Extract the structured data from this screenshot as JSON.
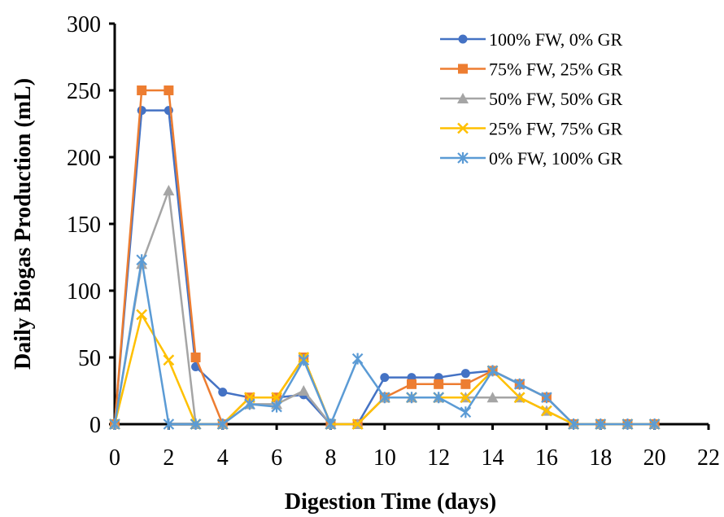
{
  "chart_data": {
    "type": "line",
    "title": "",
    "xlabel": "Digestion Time (days)",
    "ylabel": "Daily Biogas Production  (mL)",
    "xlim": [
      0,
      22
    ],
    "ylim": [
      0,
      300
    ],
    "xticks": [
      "0",
      "2",
      "4",
      "6",
      "8",
      "10",
      "12",
      "14",
      "16",
      "18",
      "20",
      "22"
    ],
    "yticks": [
      "0",
      "50",
      "100",
      "150",
      "200",
      "250",
      "300"
    ],
    "grid": false,
    "legend_position": "top-right",
    "x": [
      0,
      1,
      2,
      3,
      4,
      5,
      6,
      7,
      8,
      9,
      10,
      11,
      12,
      13,
      14,
      15,
      16,
      17,
      18,
      19,
      20
    ],
    "series": [
      {
        "name": "100% FW, 0% GR",
        "color": "#4472C4",
        "marker": "circle",
        "values": [
          0,
          235,
          235,
          43,
          24,
          20,
          20,
          22,
          0,
          0,
          35,
          35,
          35,
          38,
          40,
          30,
          20,
          0,
          0,
          0,
          0
        ]
      },
      {
        "name": "75% FW, 25% GR",
        "color": "#ED7D31",
        "marker": "square",
        "values": [
          0,
          250,
          250,
          50,
          0,
          20,
          20,
          50,
          0,
          0,
          20,
          30,
          30,
          30,
          40,
          30,
          20,
          0,
          0,
          0,
          0
        ]
      },
      {
        "name": "50% FW, 50% GR",
        "color": "#A5A5A5",
        "marker": "triangle",
        "values": [
          0,
          120,
          175,
          0,
          0,
          15,
          15,
          25,
          0,
          0,
          20,
          20,
          20,
          20,
          20,
          20,
          10,
          0,
          0,
          0,
          0
        ]
      },
      {
        "name": "25% FW, 75% GR",
        "color": "#FFC000",
        "marker": "x",
        "values": [
          0,
          82,
          48,
          0,
          0,
          20,
          20,
          50,
          0,
          0,
          20,
          20,
          20,
          20,
          40,
          20,
          10,
          0,
          0,
          0,
          0
        ]
      },
      {
        "name": "0% FW, 100% GR",
        "color": "#5B9BD5",
        "marker": "star",
        "values": [
          0,
          123,
          0,
          0,
          0,
          15,
          13,
          48,
          0,
          49,
          20,
          20,
          20,
          9,
          40,
          30,
          20,
          0,
          0,
          0,
          0
        ]
      }
    ]
  }
}
